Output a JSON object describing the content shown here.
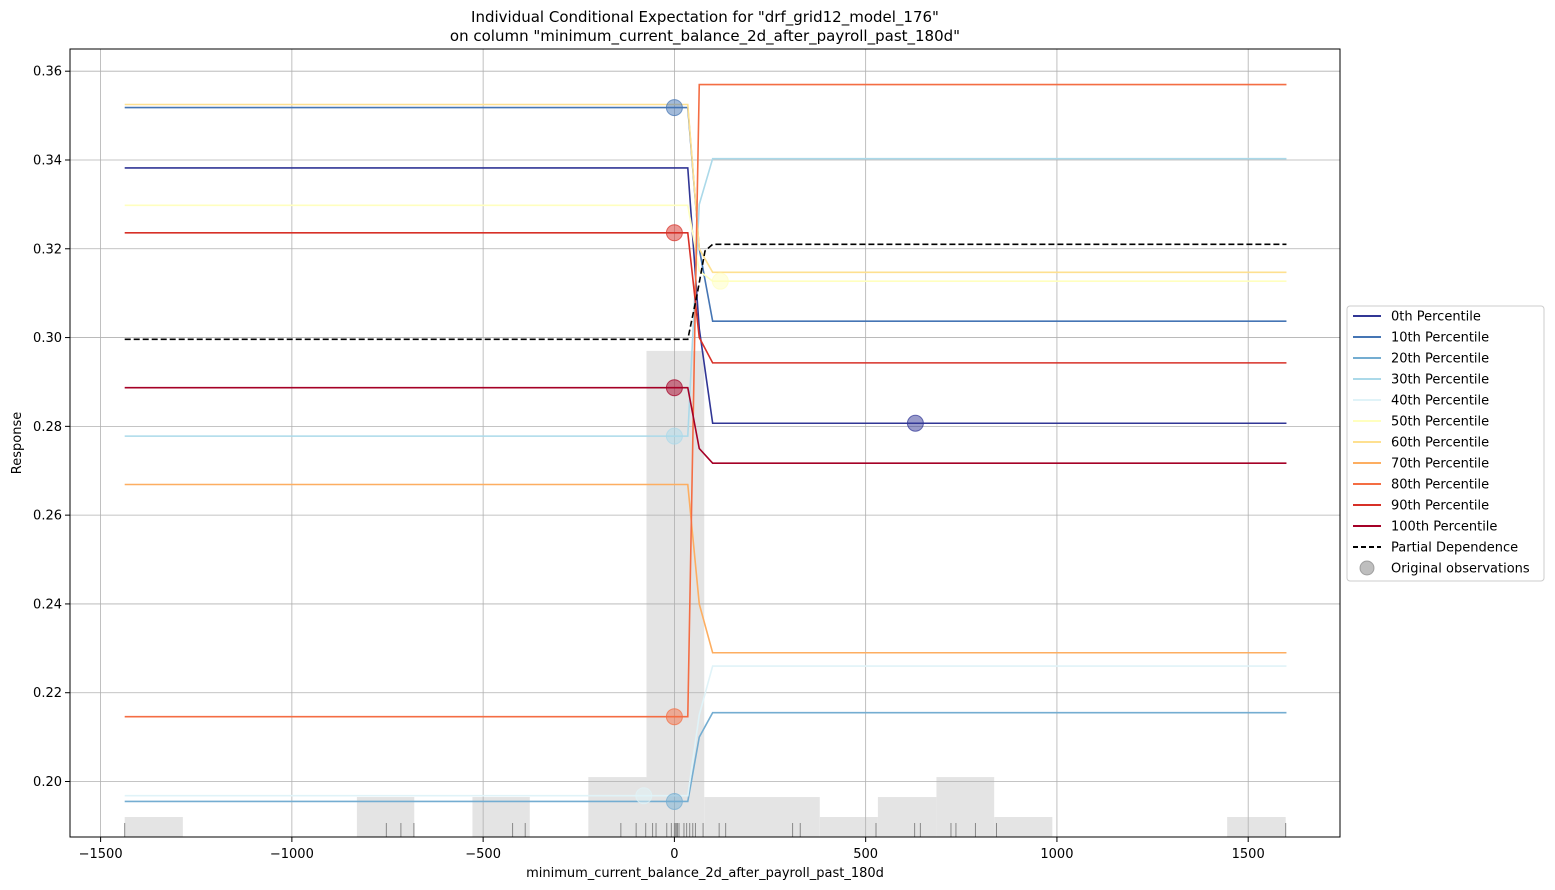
{
  "chart_data": {
    "type": "line",
    "title_line1": "Individual Conditional Expectation for \"drf_grid12_model_176\"",
    "title_line2": "on column \"minimum_current_balance_2d_after_payroll_past_180d\"",
    "xlabel": "minimum_current_balance_2d_after_payroll_past_180d",
    "ylabel": "Response",
    "xlim": [
      -1580,
      1740
    ],
    "ylim": [
      0.1875,
      0.365
    ],
    "x_ticks": [
      -1500,
      -1000,
      -500,
      0,
      500,
      1000,
      1500
    ],
    "x_tick_labels": [
      "−1500",
      "−1000",
      "−500",
      "0",
      "500",
      "1000",
      "1500"
    ],
    "y_ticks": [
      0.2,
      0.22,
      0.24,
      0.26,
      0.28,
      0.3,
      0.32,
      0.34,
      0.36
    ],
    "y_tick_labels": [
      "0.20",
      "0.22",
      "0.24",
      "0.26",
      "0.28",
      "0.30",
      "0.32",
      "0.34",
      "0.36"
    ],
    "grid": true,
    "legend_position": "right",
    "x": [
      -1437,
      35,
      65,
      100,
      1600
    ],
    "series": [
      {
        "name": "0th Percentile",
        "color": "#313695",
        "values": [
          0.3382,
          0.3382,
          0.302,
          0.2807,
          0.2807
        ]
      },
      {
        "name": "10th Percentile",
        "color": "#4575b4",
        "values": [
          0.3518,
          0.3518,
          0.32,
          0.3037,
          0.3037
        ]
      },
      {
        "name": "20th Percentile",
        "color": "#74add1",
        "values": [
          0.1955,
          0.1955,
          0.21,
          0.2155,
          0.2155
        ]
      },
      {
        "name": "30th Percentile",
        "color": "#abd9e9",
        "values": [
          0.2778,
          0.2778,
          0.33,
          0.3403,
          0.3403
        ]
      },
      {
        "name": "40th Percentile",
        "color": "#e0f3f8",
        "values": [
          0.1968,
          0.1968,
          0.215,
          0.226,
          0.226
        ]
      },
      {
        "name": "50th Percentile",
        "color": "#ffffbf",
        "values": [
          0.3298,
          0.3298,
          0.315,
          0.3127,
          0.3127
        ]
      },
      {
        "name": "60th Percentile",
        "color": "#fee090",
        "values": [
          0.3525,
          0.3525,
          0.32,
          0.3147,
          0.3147
        ]
      },
      {
        "name": "70th Percentile",
        "color": "#fdae61",
        "values": [
          0.2669,
          0.2669,
          0.24,
          0.229,
          0.229
        ]
      },
      {
        "name": "80th Percentile",
        "color": "#f46d43",
        "values": [
          0.2146,
          0.2146,
          0.357,
          0.357,
          0.357
        ]
      },
      {
        "name": "90th Percentile",
        "color": "#d73027",
        "values": [
          0.3236,
          0.3236,
          0.3,
          0.2943,
          0.2943
        ]
      },
      {
        "name": "100th Percentile",
        "color": "#a50026",
        "values": [
          0.2887,
          0.2887,
          0.275,
          0.2717,
          0.2717
        ]
      }
    ],
    "partial_dependence": {
      "name": "Partial Dependence",
      "color": "#000000",
      "x": [
        -1437,
        35,
        60,
        80,
        100,
        1600
      ],
      "values": [
        0.2996,
        0.2996,
        0.31,
        0.3195,
        0.321,
        0.321
      ]
    },
    "observations_label": "Original observations",
    "observations": [
      {
        "x": 630,
        "y": 0.2807,
        "color": "#313695"
      },
      {
        "x": 0,
        "y": 0.3518,
        "color": "#4575b4"
      },
      {
        "x": 0,
        "y": 0.1955,
        "color": "#74add1"
      },
      {
        "x": 0,
        "y": 0.2778,
        "color": "#abd9e9"
      },
      {
        "x": -80,
        "y": 0.1968,
        "color": "#e0f3f8"
      },
      {
        "x": 120,
        "y": 0.3127,
        "color": "#ffffbf"
      },
      {
        "x": 0,
        "y": 0.2146,
        "color": "#f46d43"
      },
      {
        "x": 0,
        "y": 0.3236,
        "color": "#d73027"
      },
      {
        "x": 0,
        "y": 0.2887,
        "color": "#a50026"
      }
    ],
    "histogram": {
      "color": "#e4e4e4",
      "bins": [
        {
          "x0": -1437,
          "x1": -1285,
          "height": 0.0045
        },
        {
          "x0": -830,
          "x1": -680,
          "height": 0.009
        },
        {
          "x0": -528,
          "x1": -378,
          "height": 0.009
        },
        {
          "x0": -225,
          "x1": -73,
          "height": 0.0135
        },
        {
          "x0": -73,
          "x1": 78,
          "height": 0.1095
        },
        {
          "x0": 78,
          "x1": 380,
          "height": 0.009
        },
        {
          "x0": 380,
          "x1": 532,
          "height": 0.0045
        },
        {
          "x0": 532,
          "x1": 685,
          "height": 0.009
        },
        {
          "x0": 685,
          "x1": 836,
          "height": 0.0135
        },
        {
          "x0": 836,
          "x1": 988,
          "height": 0.0045
        },
        {
          "x0": 1445,
          "x1": 1598,
          "height": 0.0045
        }
      ]
    },
    "rug": {
      "color": "#888888",
      "x": [
        -1437,
        -753,
        -715,
        -681,
        -423,
        -390,
        -140,
        -100,
        -75,
        -57,
        -48,
        -20,
        -8,
        0,
        2,
        5,
        8,
        12,
        25,
        32,
        40,
        48,
        55,
        75,
        117,
        134,
        309,
        329,
        527,
        628,
        643,
        723,
        736,
        787,
        842,
        1598
      ]
    }
  }
}
